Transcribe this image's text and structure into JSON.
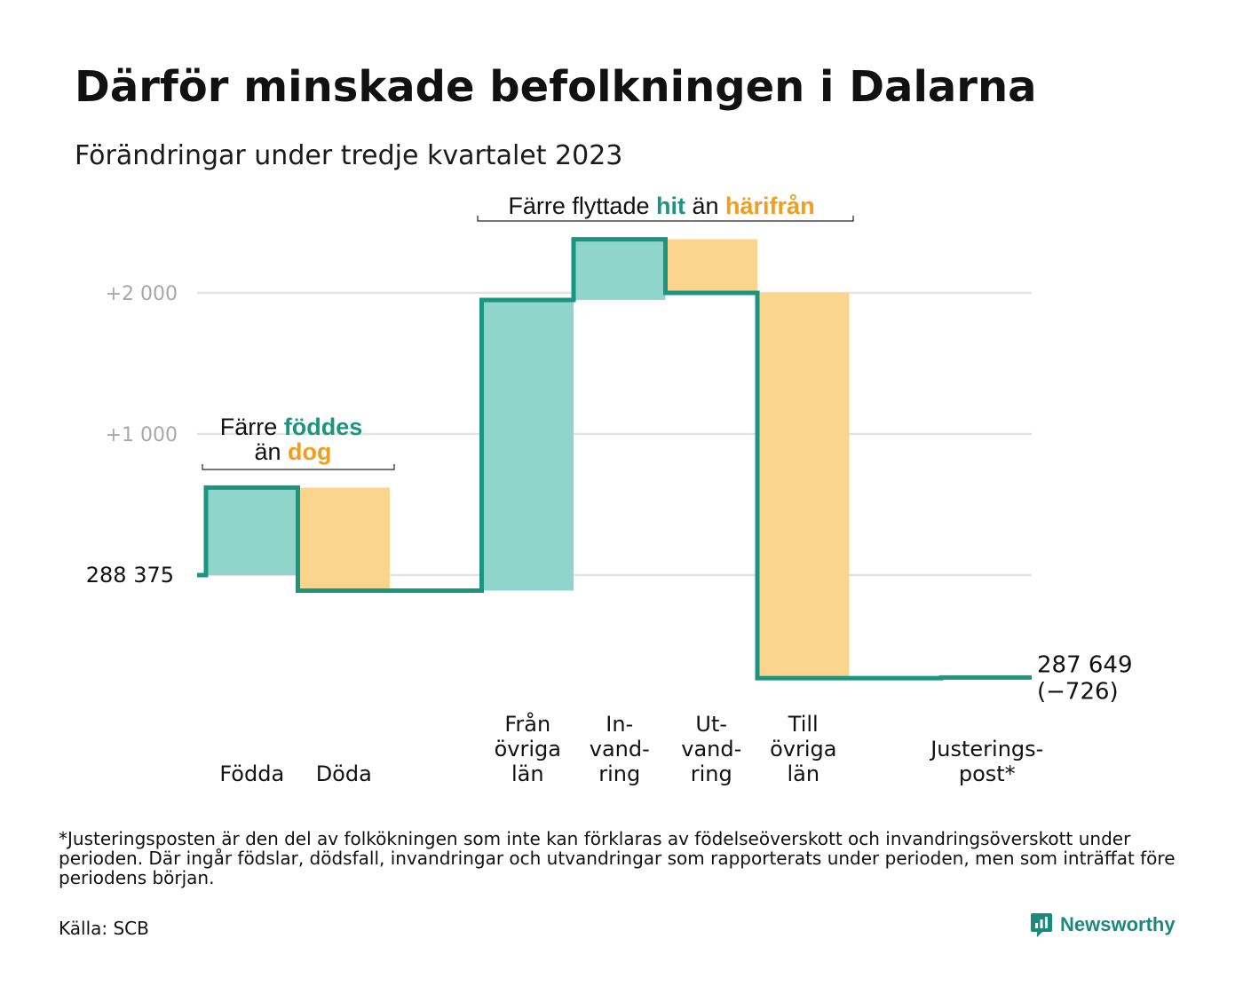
{
  "title": "Därför minskade befolkningen i Dalarna",
  "subtitle": "Förändringar under tredje kvartalet 2023",
  "footnote": "*Justeringsposten är den del av folkökningen som inte kan förklaras av födelseöverskott och invandringsöverskott under perioden. Där ingår födslar, dödsfall, invandringar och utvandringar som rapporterats under perioden, men som inträffat före periodens början.",
  "source": "Källa: SCB",
  "brand": {
    "name": "Newsworthy",
    "icon": "newsworthy-logo-icon"
  },
  "colors": {
    "increase": "#8fd5cc",
    "decrease": "#fbd58d",
    "line": "#1b9580",
    "grid": "#e3e3e3",
    "accent_green": "#1b9580",
    "accent_orange": "#f29d1c"
  },
  "annotations": {
    "births_deaths": {
      "line1_pre": "Färre ",
      "line1_hl": "föddes",
      "line2_pre": "än ",
      "line2_hl": "dog"
    },
    "migration": {
      "pre": "Färre flyttade ",
      "hl1": "hit",
      "mid": " än ",
      "hl2": "härifrån"
    }
  },
  "chart_data": {
    "type": "waterfall",
    "start_label": "288 375",
    "end_label": "287 649",
    "end_change_label": "(−726)",
    "y_tick_labels": [
      "+1 000",
      "+2 000"
    ],
    "y_ticks": [
      1000,
      2000
    ],
    "ylim": [
      -900,
      2400
    ],
    "grid": true,
    "categories": [
      {
        "label": [
          "Födda"
        ],
        "value": 620
      },
      {
        "label": [
          "Döda"
        ],
        "value": -730
      },
      {
        "label": [
          ""
        ],
        "value": 0
      },
      {
        "label": [
          "Från",
          "övriga",
          "län"
        ],
        "value": 2060
      },
      {
        "label": [
          "In-",
          "vand-",
          "ring"
        ],
        "value": 430
      },
      {
        "label": [
          "Ut-",
          "vand-",
          "ring"
        ],
        "value": -380
      },
      {
        "label": [
          "Till",
          "övriga",
          "län"
        ],
        "value": -2730
      },
      {
        "label": [
          ""
        ],
        "value": 0
      },
      {
        "label": [
          "Justerings-",
          "post*"
        ],
        "value": 4
      }
    ]
  }
}
